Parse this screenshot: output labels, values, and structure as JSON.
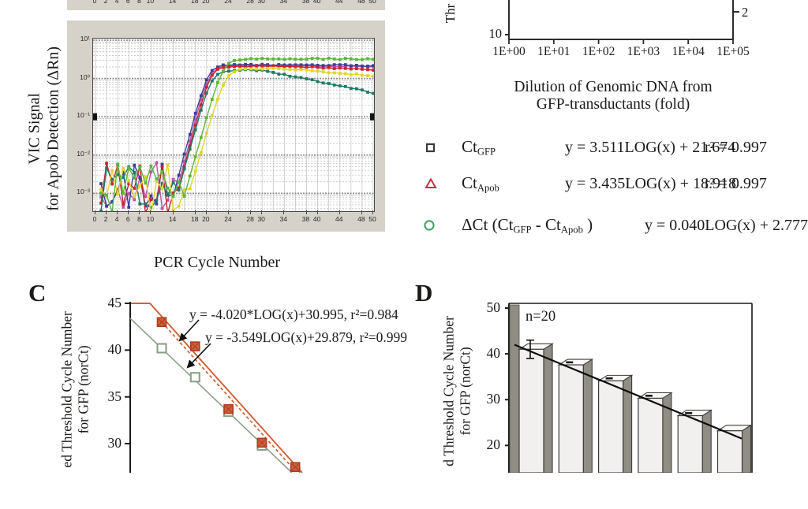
{
  "panel_a_strip": {
    "x_ticks": [
      "0",
      "2",
      "4",
      "6",
      "8",
      "10",
      "14",
      "18",
      "20",
      "24",
      "28",
      "30",
      "34",
      "38",
      "40",
      "44",
      "48",
      "50"
    ],
    "panel_bg": "#d6d2c9"
  },
  "vic_plot": {
    "ylabel_line1": "VIC Signal",
    "ylabel_line2": "for Apob Detection (ΔRn)",
    "xlabel": "PCR Cycle Number",
    "y_ticks": [
      "10¹",
      "10⁰",
      "10⁻¹",
      "10⁻²",
      "10⁻³"
    ],
    "x_ticks": [
      "0",
      "2",
      "4",
      "6",
      "8",
      "10",
      "14",
      "18",
      "20",
      "24",
      "28",
      "30",
      "34",
      "38",
      "40",
      "44",
      "48",
      "50"
    ],
    "panel_bg": "#d6d2c9"
  },
  "dilution_plot": {
    "ylabel_fragment": "Thr",
    "left_y_tick": "10",
    "right_y_tick": "2",
    "x_ticks": [
      "1E+00",
      "1E+01",
      "1E+02",
      "1E+03",
      "1E+04",
      "1E+05"
    ],
    "caption_line1": "Dilution of Genomic DNA from",
    "caption_line2": "GFP-transductants (fold)"
  },
  "legend": {
    "rows": [
      {
        "marker": "open-square-icon",
        "marker_color": "#3b3b3b",
        "label_main": "Ct",
        "label_sub": "GFP",
        "equation": "y = 3.511LOG(x) + 21.674",
        "r2": "r² = 0.997"
      },
      {
        "marker": "open-triangle-icon",
        "marker_color": "#c23440",
        "label_main": "Ct",
        "label_sub": "Apob",
        "equation": "y = 3.435LOG(x) + 18.918",
        "r2": "r² = 0.997"
      },
      {
        "marker": "open-circle-icon",
        "marker_color": "#3f9e63",
        "parts": {
          "p0": "ΔCt  (Ct",
          "s0": "GFP",
          "p1": " -  Ct",
          "s1": "Apob",
          "p2": " )"
        },
        "equation": "y = 0.040LOG(x) + 2.777",
        "r2": ""
      }
    ]
  },
  "panel_c": {
    "label": "C",
    "ylabel_line1": "ed Threshold Cycle Number",
    "ylabel_line2": "for GFP (norCt)",
    "y_ticks": [
      "45",
      "40",
      "35",
      "30"
    ],
    "eq1": "y = -4.020*LOG(x)+30.995, r²=0.984",
    "eq2": "y = -3.549LOG(x)+29.879, r²=0.999"
  },
  "panel_d": {
    "label": "D",
    "ylabel_line1": "d Threshold Cycle Number",
    "ylabel_line2": "for GFP (norCt)",
    "y_ticks": [
      "50",
      "40",
      "30",
      "20"
    ],
    "annotation": "n=20"
  },
  "chart_data": [
    {
      "id": "vic_amplification",
      "type": "line",
      "log_y": true,
      "x_range": [
        0,
        50
      ],
      "y_range_log10": [
        1,
        -3.44
      ],
      "threshold_log10": -1,
      "xlabel": "PCR Cycle Number",
      "ylabel": "VIC Signal for Apob Detection (ΔRn)",
      "x_tick_cycles": [
        0,
        2,
        4,
        6,
        8,
        10,
        14,
        18,
        20,
        24,
        28,
        30,
        34,
        38,
        40,
        44,
        48,
        50
      ],
      "series": [
        {
          "name": "magenta",
          "color": "#bf57a6",
          "ct": 20.5,
          "slope_w": 0.78,
          "plateau": 2.15,
          "droop_start": 40,
          "droop_rate": 0.005
        },
        {
          "name": "navy",
          "color": "#3b3e9a",
          "ct": 20.3,
          "slope_w": 0.8,
          "plateau": 2.25,
          "droop_start": 42,
          "droop_rate": 0.005
        },
        {
          "name": "red",
          "color": "#c9232f",
          "ct": 20.7,
          "slope_w": 0.78,
          "plateau": 2.05,
          "droop_start": 36,
          "droop_rate": 0.015
        },
        {
          "name": "teal",
          "color": "#1c7a67",
          "ct": 20.9,
          "slope_w": 0.82,
          "plateau": 1.65,
          "droop_start": 30,
          "droop_rate": 0.068
        },
        {
          "name": "yellow",
          "color": "#ddd72b",
          "ct": 23.5,
          "slope_w": 0.9,
          "plateau": 1.8,
          "droop_start": 34,
          "droop_rate": 0.027
        },
        {
          "name": "green",
          "color": "#5ab838",
          "ct": 23.0,
          "slope_w": 0.85,
          "plateau": 3.25,
          "droop_start": 44,
          "droop_rate": 0.005
        }
      ],
      "baseline_noise_log10_range": [
        -3.55,
        -2.2
      ]
    },
    {
      "id": "dilution_standard_curve_bottom",
      "type": "scatter",
      "x_ticks": [
        "1E+00",
        "1E+01",
        "1E+02",
        "1E+03",
        "1E+04",
        "1E+05"
      ],
      "left_y_tick": "10",
      "right_y_tick": "2",
      "xlabel": "Dilution of Genomic DNA from GFP-transductants (fold)"
    },
    {
      "id": "panel_c_standard_curves",
      "type": "scatter",
      "ylabel": "ed Threshold Cycle Number for GFP (norCt)",
      "y_ticks": [
        45,
        40,
        35,
        30
      ],
      "x_points_rel": [
        0,
        1,
        2,
        3,
        4
      ],
      "series": [
        {
          "name": "filled-orange-squares",
          "color": "#d06038",
          "edge": "#a93d20",
          "values": [
            43.0,
            40.4,
            33.7,
            30.1,
            27.5
          ],
          "fit": "y = -4.020*LOG(x)+30.995",
          "r2": 0.984,
          "fit_line": "dashed"
        },
        {
          "name": "open-green-squares",
          "color": "#8ba089, open",
          "edge": "#8ba089",
          "values": [
            40.2,
            37.1,
            33.4,
            29.8,
            26.9
          ],
          "fit": "y = -3.549LOG(x)+29.879",
          "r2": 0.999,
          "fit_line": "solid"
        }
      ]
    },
    {
      "id": "panel_d_bars",
      "type": "bar",
      "ylabel": "d Threshold Cycle Number for GFP (norCt)",
      "y_ticks": [
        50,
        40,
        30,
        20
      ],
      "values": [
        41.0,
        37.6,
        34.1,
        30.3,
        26.5,
        23.2
      ],
      "errors": [
        2.0,
        0.5,
        0.5,
        0.5,
        0.5,
        0
      ],
      "trend_line_y": [
        42.0,
        21.5
      ],
      "annotation": "n=20",
      "bar_front": "#f2f0ee",
      "bar_side": "#8f8d84",
      "bar_top": "#fbfaf9"
    }
  ]
}
